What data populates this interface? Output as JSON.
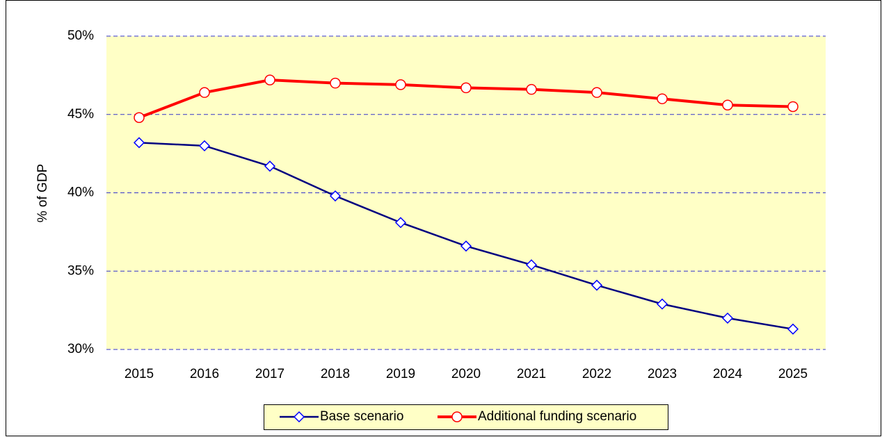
{
  "chart_data": {
    "type": "line",
    "y_label": "% of GDP",
    "categories": [
      "2015",
      "2016",
      "2017",
      "2018",
      "2019",
      "2020",
      "2021",
      "2022",
      "2023",
      "2024",
      "2025"
    ],
    "series": [
      {
        "name": "Base scenario",
        "color": "#000080",
        "marker": "diamond",
        "marker_color": "#0000ff",
        "values": [
          43.2,
          43.0,
          41.7,
          39.8,
          38.1,
          36.6,
          35.4,
          34.1,
          32.9,
          32.0,
          31.3
        ]
      },
      {
        "name": "Additional funding scenario",
        "color": "#ff0000",
        "marker": "circle",
        "marker_color": "#ff0000",
        "values": [
          44.8,
          46.4,
          47.2,
          47.0,
          46.9,
          46.7,
          46.6,
          46.4,
          46.0,
          45.6,
          45.5
        ]
      }
    ],
    "ylim": [
      30,
      50
    ],
    "yticks": [
      {
        "value": 30,
        "label": "30%"
      },
      {
        "value": 35,
        "label": "35%"
      },
      {
        "value": 40,
        "label": "40%"
      },
      {
        "value": 45,
        "label": "45%"
      },
      {
        "value": 50,
        "label": "50%"
      }
    ],
    "grid": true,
    "legend": "bottom"
  }
}
